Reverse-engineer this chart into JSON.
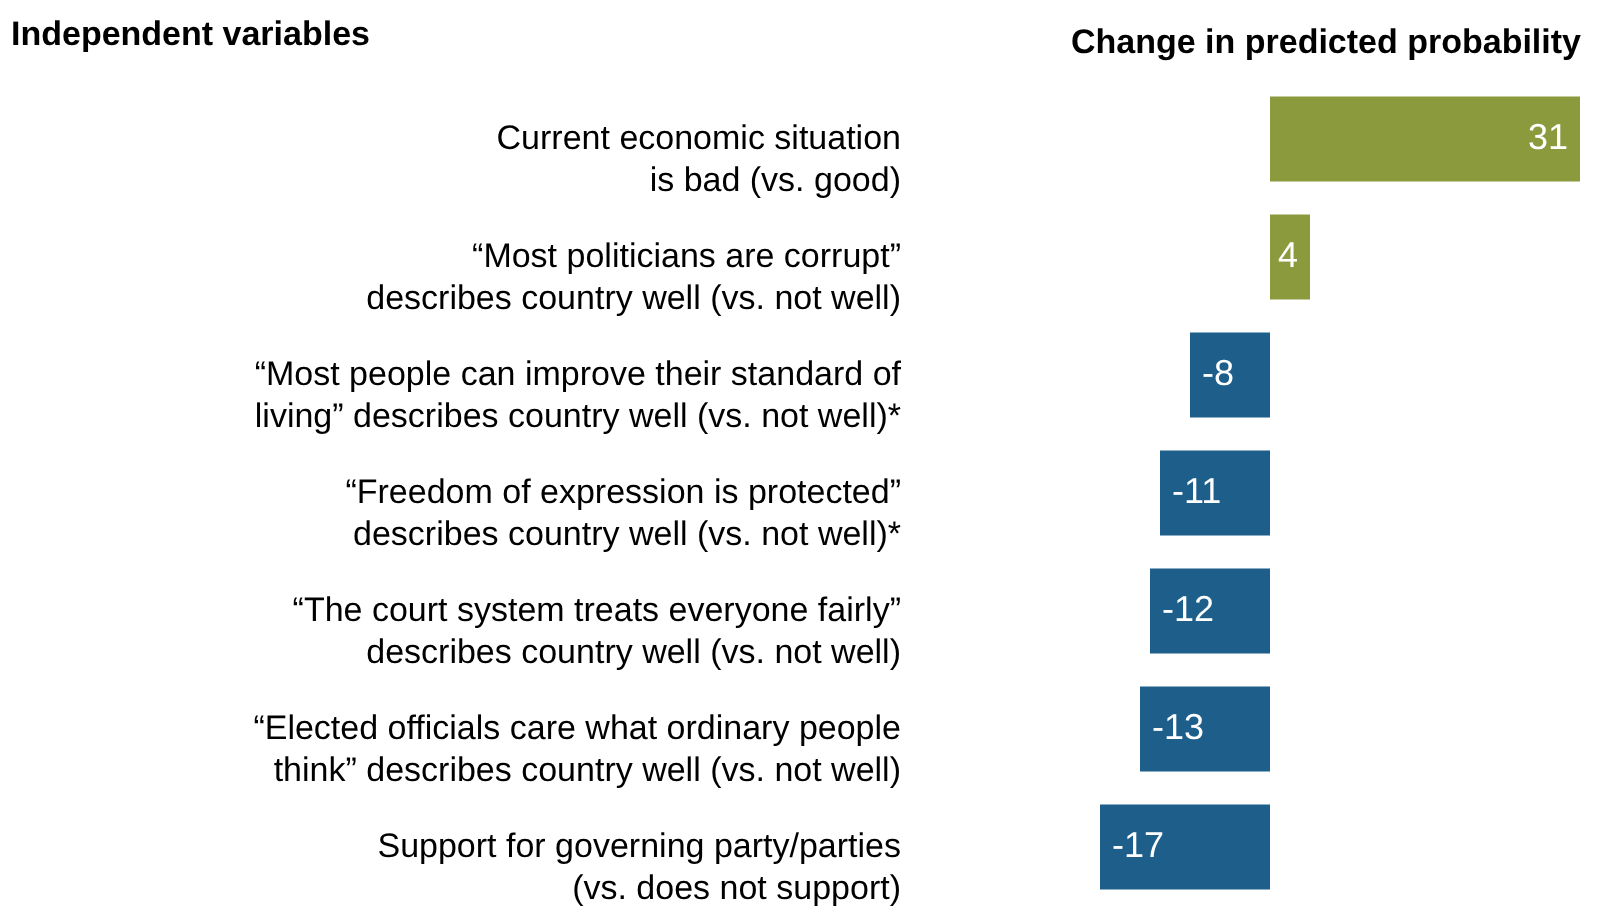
{
  "chart_data": {
    "type": "bar",
    "orientation": "horizontal",
    "ylabel": "Independent variables",
    "xlabel": "Change in predicted probability",
    "categories": [
      "Current economic situation is bad (vs. good)",
      "“Most politicians are corrupt” describes country well (vs. not well)",
      "“Most people can improve their standard of living” describes country well (vs. not well)*",
      "“Freedom of expression is protected” describes country well (vs. not well)*",
      "“The court system treats everyone fairly” describes country well (vs. not well)",
      "“Elected officials care what ordinary people think” describes country well (vs. not well)",
      "Support for governing party/parties (vs. does not support)"
    ],
    "values": [
      31,
      4,
      -8,
      -11,
      -12,
      -13,
      -17
    ],
    "colors": [
      "#8c9a3e",
      "#8c9a3e",
      "#1d5f8a",
      "#1d5f8a",
      "#1d5f8a",
      "#1d5f8a",
      "#1d5f8a"
    ],
    "data_labels": true
  }
}
